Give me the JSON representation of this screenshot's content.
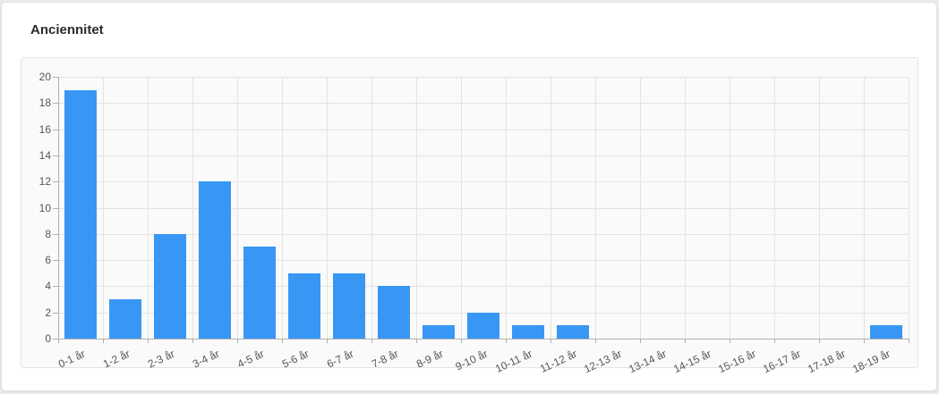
{
  "card": {
    "title": "Anciennitet"
  },
  "chart_data": {
    "type": "bar",
    "title": "Anciennitet",
    "categories": [
      "0-1 år",
      "1-2 år",
      "2-3 år",
      "3-4 år",
      "4-5 år",
      "5-6 år",
      "6-7 år",
      "7-8 år",
      "8-9 år",
      "9-10 år",
      "10-11 år",
      "11-12 år",
      "12-13 år",
      "13-14 år",
      "14-15 år",
      "15-16 år",
      "16-17 år",
      "17-18 år",
      "18-19 år"
    ],
    "values": [
      19,
      3,
      8,
      12,
      7,
      5,
      5,
      4,
      1,
      2,
      1,
      1,
      0,
      0,
      0,
      0,
      0,
      0,
      1
    ],
    "xlabel": "",
    "ylabel": "",
    "ylim": [
      0,
      20
    ],
    "ytick_step": 2,
    "grid": true,
    "legend": false,
    "x_label_rotation_deg": -25,
    "colors": {
      "bar": "#3897f5",
      "panel_bg": "#fafafa",
      "panel_border": "#e4e4e4",
      "grid": "#e3e3e3",
      "axis": "#b0b0b0",
      "tick_text": "#555555",
      "title_text": "#2b2b2b"
    }
  }
}
